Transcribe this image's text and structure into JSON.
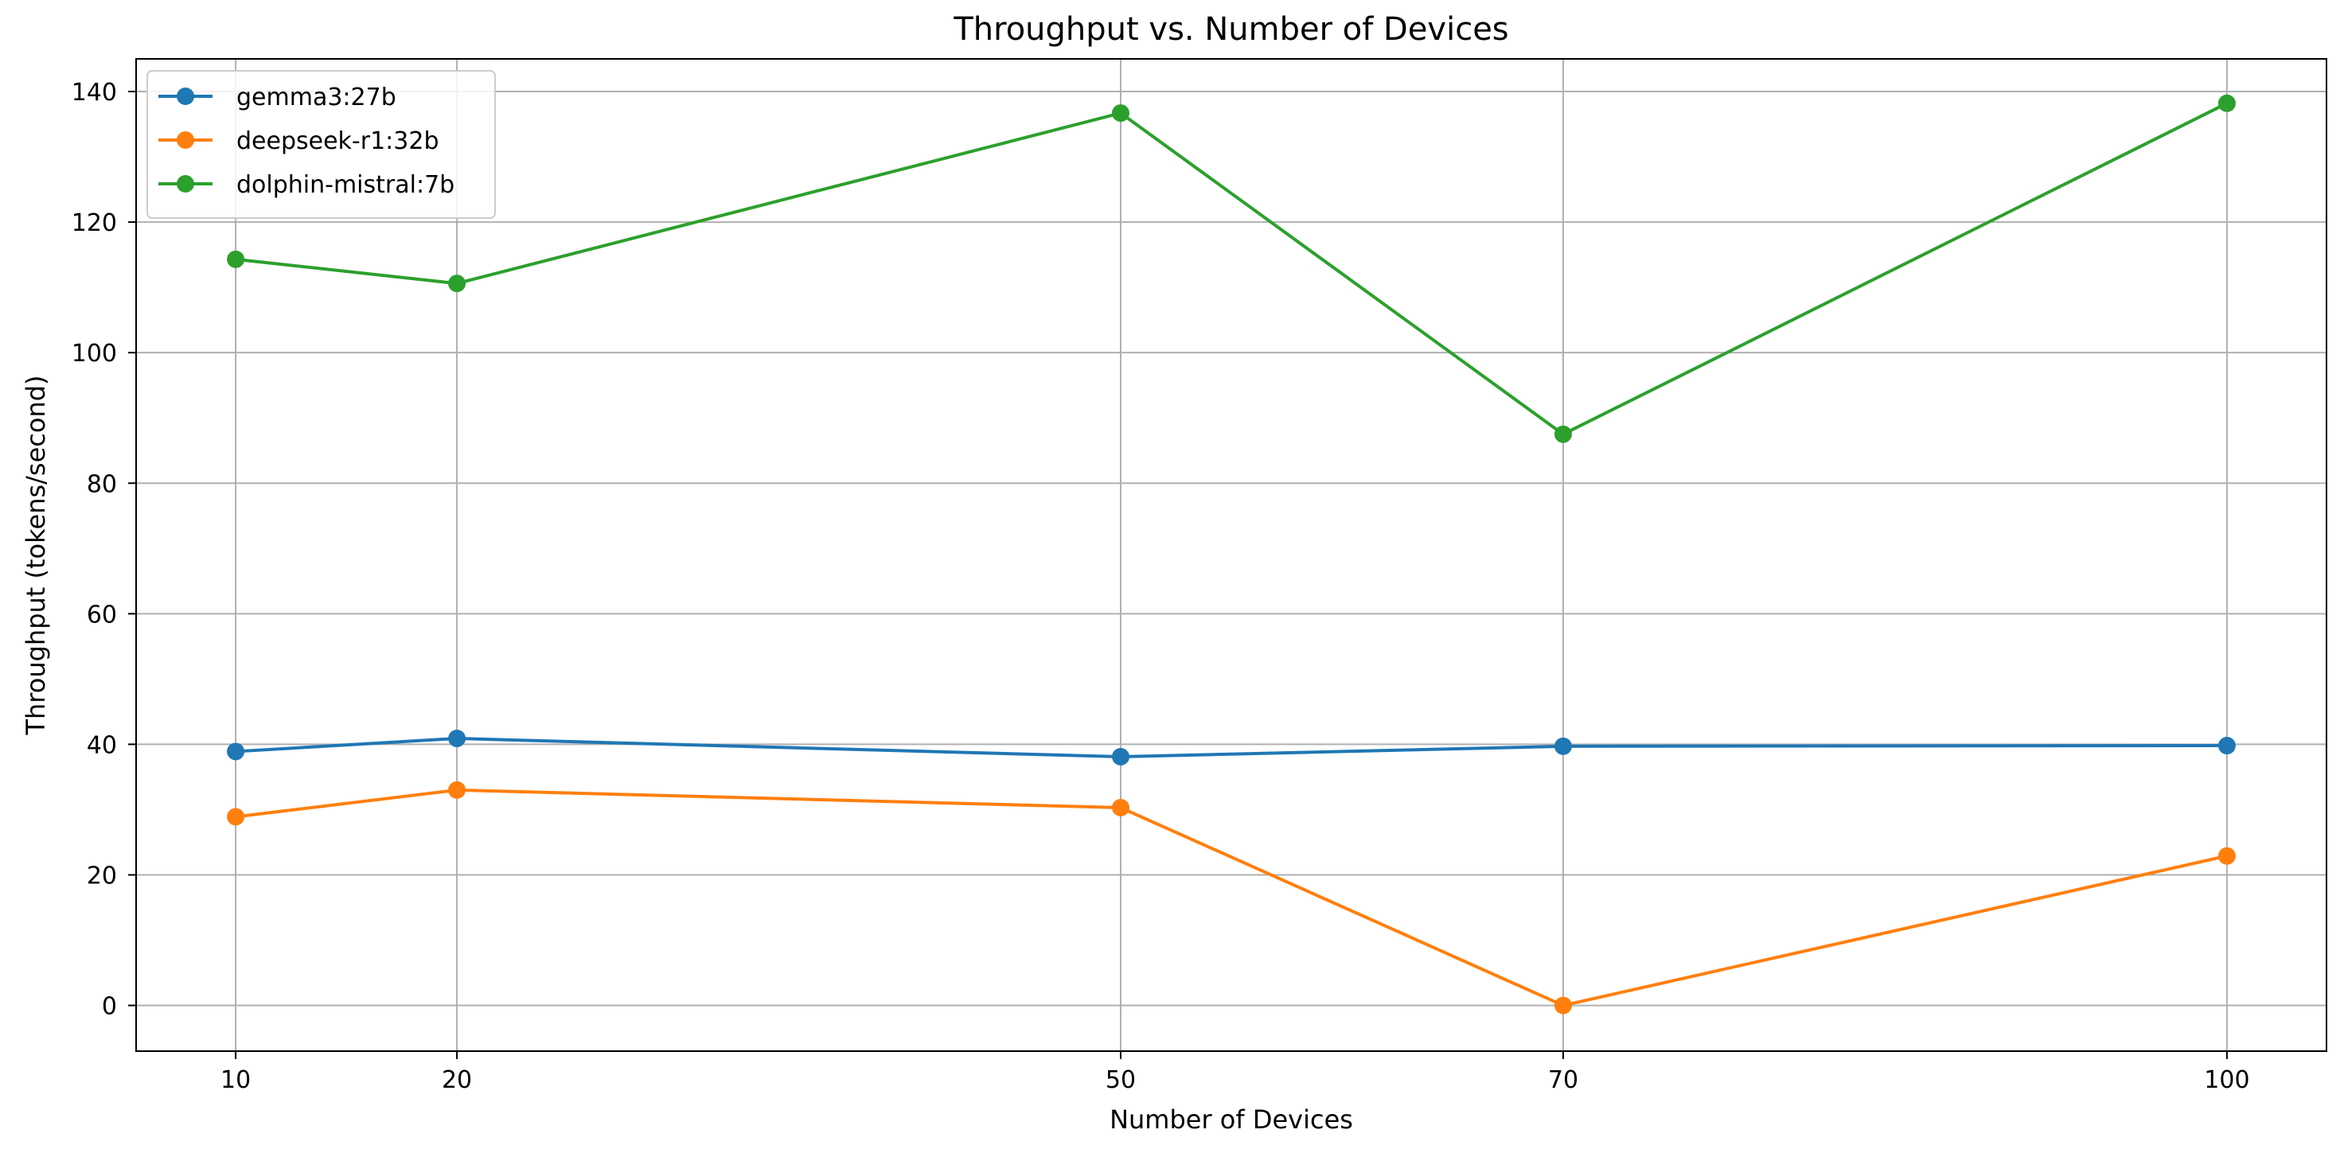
{
  "chart_data": {
    "type": "line",
    "title": "Throughput vs. Number of Devices",
    "xlabel": "Number of Devices",
    "ylabel": "Throughput (tokens/second)",
    "x": [
      10,
      20,
      50,
      70,
      100
    ],
    "xlim": [
      5.5,
      104.5
    ],
    "ylim": [
      -7,
      145
    ],
    "xticks": [
      10,
      20,
      50,
      70,
      100
    ],
    "yticks": [
      0,
      20,
      40,
      60,
      80,
      100,
      120,
      140
    ],
    "grid": true,
    "legend_position": "upper-left",
    "series": [
      {
        "name": "gemma3:27b",
        "color": "#1f77b4",
        "values": [
          38.9,
          40.9,
          38.1,
          39.7,
          39.8
        ]
      },
      {
        "name": "deepseek-r1:32b",
        "color": "#ff7f0e",
        "values": [
          28.9,
          33.0,
          30.3,
          0.0,
          22.9
        ]
      },
      {
        "name": "dolphin-mistral:7b",
        "color": "#2ca02c",
        "values": [
          114.3,
          110.6,
          136.7,
          87.5,
          138.2
        ]
      }
    ]
  }
}
